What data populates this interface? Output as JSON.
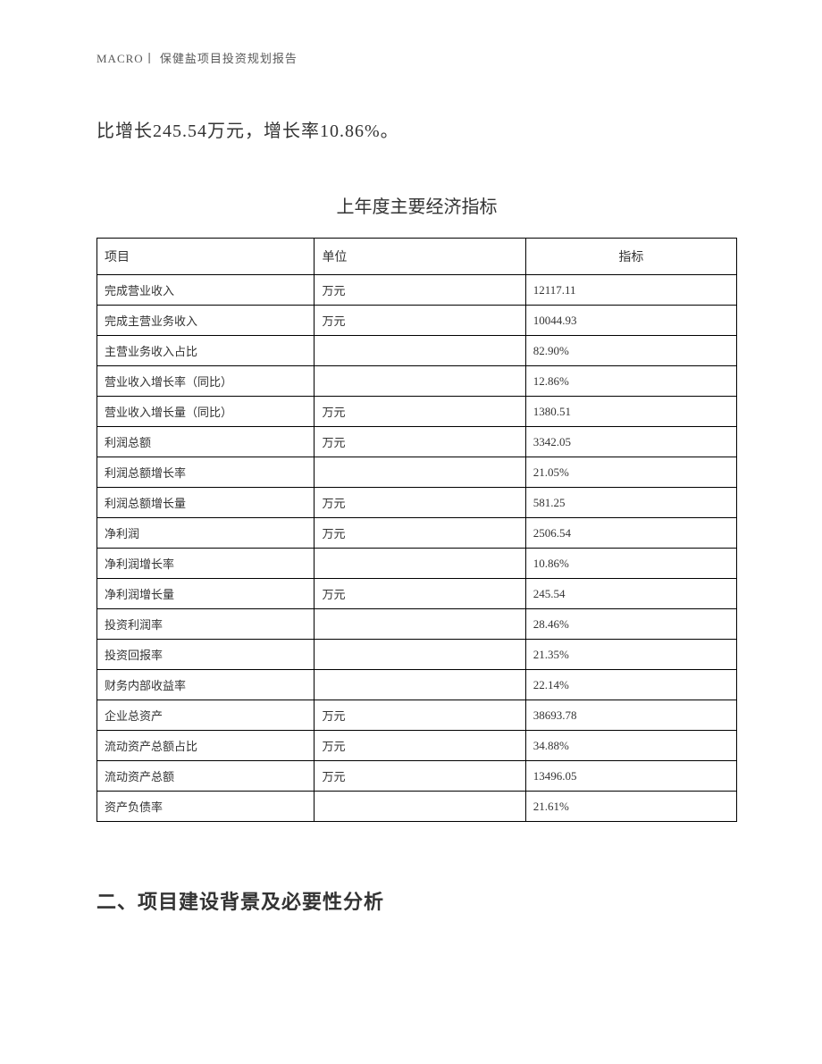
{
  "header": {
    "text": "MACRO丨 保健盐项目投资规划报告"
  },
  "body_paragraph": "比增长245.54万元，增长率10.86%。",
  "table": {
    "title": "上年度主要经济指标",
    "columns": [
      "项目",
      "单位",
      "指标"
    ],
    "rows": [
      [
        "完成营业收入",
        "万元",
        "12117.11"
      ],
      [
        "完成主营业务收入",
        "万元",
        "10044.93"
      ],
      [
        "主营业务收入占比",
        "",
        "82.90%"
      ],
      [
        "营业收入增长率（同比）",
        "",
        "12.86%"
      ],
      [
        "营业收入增长量（同比）",
        "万元",
        "1380.51"
      ],
      [
        "利润总额",
        "万元",
        "3342.05"
      ],
      [
        "利润总额增长率",
        "",
        "21.05%"
      ],
      [
        "利润总额增长量",
        "万元",
        "581.25"
      ],
      [
        "净利润",
        "万元",
        "2506.54"
      ],
      [
        "净利润增长率",
        "",
        "10.86%"
      ],
      [
        "净利润增长量",
        "万元",
        "245.54"
      ],
      [
        "投资利润率",
        "",
        "28.46%"
      ],
      [
        "投资回报率",
        "",
        "21.35%"
      ],
      [
        "财务内部收益率",
        "",
        "22.14%"
      ],
      [
        "企业总资产",
        "万元",
        "38693.78"
      ],
      [
        "流动资产总额占比",
        "万元",
        "34.88%"
      ],
      [
        "流动资产总额",
        "万元",
        "13496.05"
      ],
      [
        "资产负债率",
        "",
        "21.61%"
      ]
    ]
  },
  "section_heading": "二、项目建设背景及必要性分析"
}
